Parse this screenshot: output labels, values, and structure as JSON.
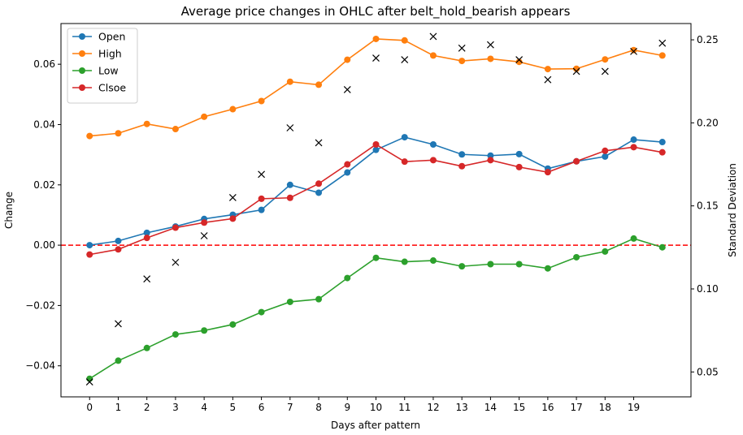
{
  "chart_data": {
    "type": "line",
    "title": "Average price changes in OHLC after belt_hold_bearish appears",
    "xlabel": "Days after pattern",
    "ylabel": "Change",
    "ylabel_right": "Standard Deviation",
    "x": [
      0,
      1,
      2,
      3,
      4,
      5,
      6,
      7,
      8,
      9,
      10,
      11,
      12,
      13,
      14,
      15,
      16,
      17,
      18,
      19,
      20
    ],
    "x_tick_labels": [
      "0",
      "1",
      "2",
      "3",
      "4",
      "5",
      "6",
      "7",
      "8",
      "9",
      "10",
      "11",
      "12",
      "13",
      "14",
      "15",
      "16",
      "17",
      "18",
      "19"
    ],
    "xlim": [
      -1.0,
      21.0
    ],
    "ylim": [
      -0.0503,
      0.0735
    ],
    "y_ticks": [
      -0.04,
      -0.02,
      0.0,
      0.02,
      0.04,
      0.06
    ],
    "y_tick_labels": [
      "−0.04",
      "−0.02",
      "0.00",
      "0.02",
      "0.04",
      "0.06"
    ],
    "y2lim": [
      0.035,
      0.2598
    ],
    "y2_ticks": [
      0.05,
      0.1,
      0.15,
      0.2,
      0.25
    ],
    "y2_tick_labels": [
      "0.05",
      "0.10",
      "0.15",
      "0.20",
      "0.25"
    ],
    "reference_line": {
      "y": 0.0,
      "color": "#ff0000",
      "style": "dashed"
    },
    "legend_position": "top-left",
    "series": [
      {
        "name": "Open",
        "color": "#1f77b4",
        "values": [
          0.0,
          0.0014,
          0.0041,
          0.0062,
          0.0087,
          0.0101,
          0.0117,
          0.02,
          0.0174,
          0.0241,
          0.0316,
          0.0358,
          0.0334,
          0.0301,
          0.0297,
          0.0302,
          0.0254,
          0.0278,
          0.0294,
          0.035,
          0.0342
        ]
      },
      {
        "name": "High",
        "color": "#ff7f0e",
        "values": [
          0.0362,
          0.0371,
          0.0402,
          0.0385,
          0.0426,
          0.0451,
          0.0478,
          0.0542,
          0.0532,
          0.0615,
          0.0684,
          0.0679,
          0.0629,
          0.0611,
          0.0618,
          0.0608,
          0.0584,
          0.0585,
          0.0616,
          0.0647,
          0.0629
        ]
      },
      {
        "name": "Low",
        "color": "#2ca02c",
        "values": [
          -0.0443,
          -0.0383,
          -0.0341,
          -0.0296,
          -0.0283,
          -0.0263,
          -0.0222,
          -0.0188,
          -0.0179,
          -0.0109,
          -0.0042,
          -0.0055,
          -0.0051,
          -0.007,
          -0.0063,
          -0.0063,
          -0.0077,
          -0.004,
          -0.0021,
          0.0022,
          -0.0007
        ]
      },
      {
        "name": "Clsoe",
        "color": "#d62728",
        "values": [
          -0.0031,
          -0.0014,
          0.0024,
          0.0058,
          0.0075,
          0.0088,
          0.0154,
          0.0157,
          0.0204,
          0.0268,
          0.0334,
          0.0277,
          0.0282,
          0.0262,
          0.0282,
          0.0259,
          0.0242,
          0.0278,
          0.0313,
          0.0325,
          0.0308
        ]
      }
    ],
    "std_markers": {
      "axis": "right",
      "marker": "x",
      "color": "#000000",
      "x": [
        0,
        1,
        2,
        3,
        4,
        5,
        6,
        7,
        8,
        9,
        10,
        11,
        12,
        13,
        14,
        15,
        16,
        17,
        18,
        19,
        20
      ],
      "values": [
        0.044,
        0.079,
        0.106,
        0.116,
        0.132,
        0.155,
        0.169,
        0.197,
        0.188,
        0.22,
        0.239,
        0.238,
        0.252,
        0.245,
        0.247,
        0.238,
        0.226,
        0.231,
        0.231,
        0.243,
        0.248
      ]
    }
  }
}
